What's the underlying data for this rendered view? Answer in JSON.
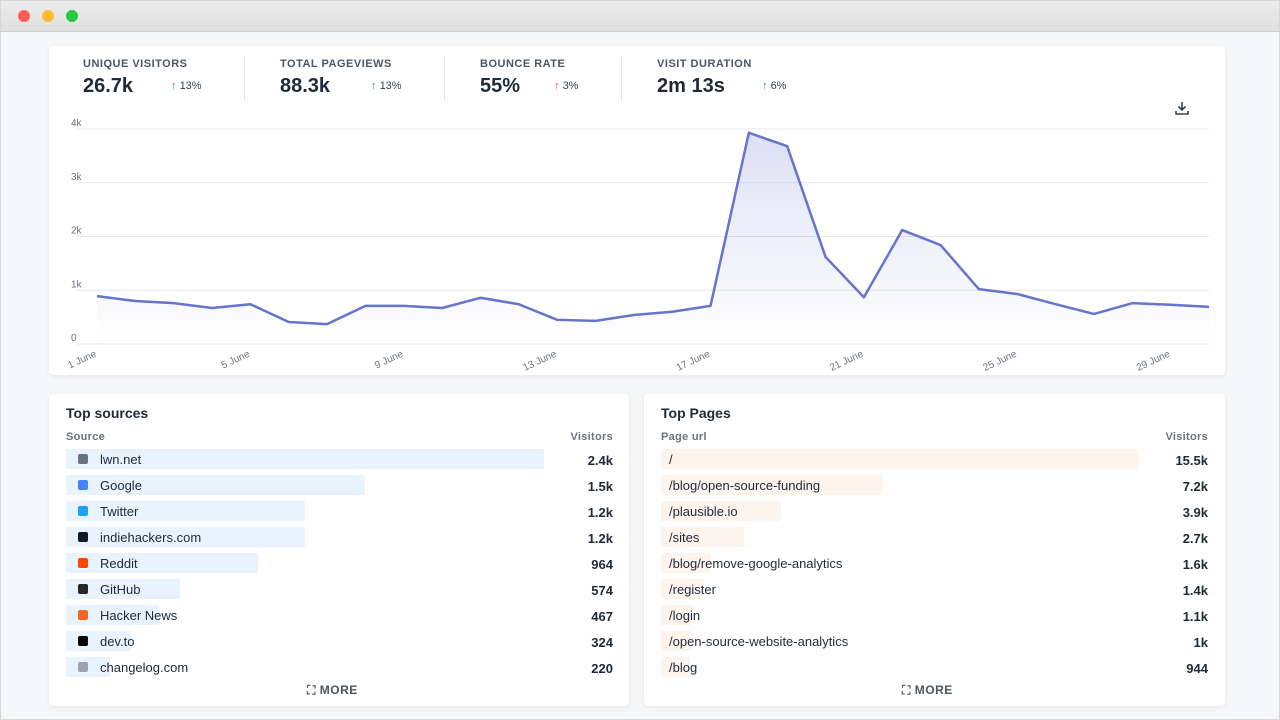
{
  "stats": [
    {
      "label": "UNIQUE VISITORS",
      "value": "26.7k",
      "change": "13%"
    },
    {
      "label": "TOTAL PAGEVIEWS",
      "value": "88.3k",
      "change": "13%"
    },
    {
      "label": "BOUNCE RATE",
      "value": "55%",
      "change": "3%"
    },
    {
      "label": "VISIT DURATION",
      "value": "2m 13s",
      "change": "6%"
    }
  ],
  "chart_data": {
    "type": "line",
    "categories": [
      "1 June",
      null,
      null,
      null,
      "5 June",
      null,
      null,
      null,
      "9 June",
      null,
      null,
      null,
      "13 June",
      null,
      null,
      null,
      "17 June",
      null,
      null,
      null,
      "21 June",
      null,
      null,
      null,
      "25 June",
      null,
      null,
      null,
      "29 June",
      null
    ],
    "values": [
      890,
      800,
      760,
      670,
      740,
      410,
      370,
      710,
      710,
      670,
      860,
      740,
      450,
      430,
      540,
      600,
      710,
      3930,
      3680,
      1620,
      870,
      2120,
      1840,
      1020,
      930,
      740,
      560,
      760,
      730,
      690
    ],
    "color": "#6574cd",
    "ylim": [
      0,
      4000
    ],
    "yticks": [
      0,
      {
        "value": 1000,
        "label": "1k"
      },
      {
        "value": 2000,
        "label": "2k"
      },
      {
        "value": 3000,
        "label": "3k"
      },
      {
        "value": 4000,
        "label": "4k"
      }
    ],
    "grid": true
  },
  "sources": {
    "title": "Top sources",
    "columns": [
      "Source",
      "Visitors"
    ],
    "items": [
      "lwn.net",
      "Google",
      "Twitter",
      "indiehackers.com",
      "Reddit",
      "GitHub",
      "Hacker News",
      "dev.to",
      "changelog.com"
    ],
    "values": [
      2400,
      1500,
      1200,
      1200,
      964,
      574,
      467,
      324,
      220
    ],
    "value_labels": [
      "2.4k",
      "1.5k",
      "1.2k",
      "1.2k",
      "964",
      "574",
      "467",
      "324",
      "220"
    ],
    "more": "MORE"
  },
  "pages": {
    "title": "Top Pages",
    "columns": [
      "Page url",
      "Visitors"
    ],
    "items": [
      "/",
      "/blog/open-source-funding",
      "/plausible.io",
      "/sites",
      "/blog/remove-google-analytics",
      "/register",
      "/login",
      "/open-source-website-analytics",
      "/blog"
    ],
    "values": [
      15500,
      7200,
      3900,
      2700,
      1600,
      1400,
      1100,
      1000,
      944
    ],
    "value_labels": [
      "15.5k",
      "7.2k",
      "3.9k",
      "2.7k",
      "1.6k",
      "1.4k",
      "1.1k",
      "1k",
      "944"
    ],
    "more": "MORE"
  }
}
